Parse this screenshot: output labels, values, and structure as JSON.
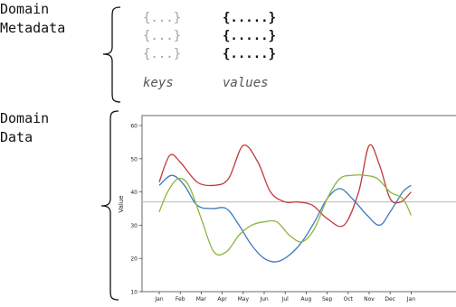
{
  "metadata_section": {
    "label_line1": "Domain",
    "label_line2": "Metadata",
    "key_tokens": [
      "{...}",
      "{...}",
      "{...}"
    ],
    "value_tokens": [
      "{.....}",
      "{.....}",
      "{.....}"
    ],
    "keys_caption": "keys",
    "values_caption": "values"
  },
  "data_section": {
    "label_line1": "Domain",
    "label_line2": "Data"
  },
  "colors": {
    "red": "#c0393b",
    "blue": "#3d79bf",
    "green": "#8db43d",
    "reference": "#b9b9b9",
    "key_gray": "#a3a3a3"
  },
  "chart_data": {
    "type": "line",
    "ylabel": "Value",
    "xlabel": "",
    "categories": [
      "Jan",
      "Feb",
      "Mar",
      "Apr",
      "May",
      "Jun",
      "Jul",
      "Aug",
      "Sep",
      "Oct",
      "Nov",
      "Dec",
      "Jan"
    ],
    "yticks": [
      10,
      20,
      30,
      40,
      50,
      60
    ],
    "ylim": [
      10,
      63
    ],
    "reference_line": 37,
    "series": [
      {
        "color": "red",
        "x": [
          0,
          0.5,
          1,
          1.8,
          2.6,
          3.3,
          4,
          4.7,
          5.3,
          6,
          6.6,
          7.3,
          8,
          8.8,
          9.5,
          10,
          10.5,
          11,
          11.5,
          12
        ],
        "values": [
          43,
          51,
          49,
          43,
          42,
          44,
          54,
          49,
          40,
          37,
          37,
          36,
          32,
          30,
          40,
          54,
          48,
          38,
          37,
          40
        ]
      },
      {
        "color": "blue",
        "x": [
          0,
          0.6,
          1.2,
          1.8,
          2.5,
          3.2,
          3.8,
          4.4,
          5,
          5.6,
          6.2,
          6.8,
          7.4,
          8,
          8.6,
          9.2,
          9.9,
          10.5,
          11,
          11.6,
          12
        ],
        "values": [
          42,
          45,
          42,
          36,
          35,
          35,
          30,
          24,
          20,
          19,
          21,
          25,
          31,
          38,
          41,
          38,
          33,
          30,
          34,
          40,
          42
        ]
      },
      {
        "color": "green",
        "x": [
          0,
          0.4,
          0.9,
          1.4,
          2,
          2.6,
          3.2,
          3.8,
          4.4,
          5,
          5.6,
          6.2,
          6.8,
          7.4,
          8,
          8.6,
          9.2,
          9.8,
          10.4,
          11,
          11.6,
          12
        ],
        "values": [
          34,
          40,
          44,
          42,
          32,
          22,
          22,
          27,
          30,
          31,
          31,
          27,
          25,
          29,
          38,
          44,
          45,
          45,
          44,
          40,
          38,
          33
        ]
      }
    ]
  }
}
